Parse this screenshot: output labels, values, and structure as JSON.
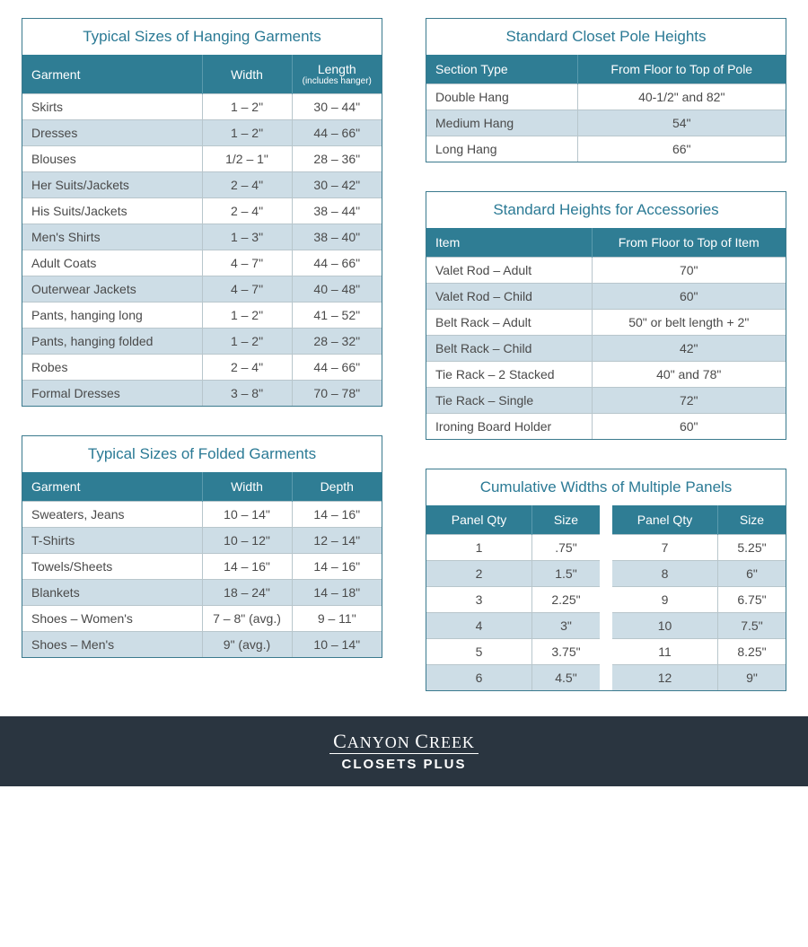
{
  "colors": {
    "header_bg": "#2f7d94",
    "title_text": "#2b7a95",
    "border": "#3b7a8e",
    "row_alt": "#cddde6",
    "footer_bg": "#2a3540"
  },
  "hanging": {
    "title": "Typical Sizes of Hanging Garments",
    "cols": {
      "c1": "Garment",
      "c2": "Width",
      "c3": "Length",
      "c3sub": "(includes hanger)"
    },
    "rows": [
      {
        "g": "Skirts",
        "w": "1 – 2\"",
        "l": "30 – 44\""
      },
      {
        "g": "Dresses",
        "w": "1 – 2\"",
        "l": "44 – 66\""
      },
      {
        "g": "Blouses",
        "w": "1/2 – 1\"",
        "l": "28 – 36\""
      },
      {
        "g": "Her Suits/Jackets",
        "w": "2 – 4\"",
        "l": "30 – 42\""
      },
      {
        "g": "His Suits/Jackets",
        "w": "2 – 4\"",
        "l": "38 – 44\""
      },
      {
        "g": "Men's Shirts",
        "w": "1 – 3\"",
        "l": "38 – 40\""
      },
      {
        "g": "Adult Coats",
        "w": "4 – 7\"",
        "l": "44 – 66\""
      },
      {
        "g": "Outerwear Jackets",
        "w": "4 – 7\"",
        "l": "40 – 48\""
      },
      {
        "g": "Pants, hanging long",
        "w": "1 – 2\"",
        "l": "41 – 52\""
      },
      {
        "g": "Pants, hanging folded",
        "w": "1 – 2\"",
        "l": "28 – 32\""
      },
      {
        "g": "Robes",
        "w": "2 – 4\"",
        "l": "44 – 66\""
      },
      {
        "g": "Formal Dresses",
        "w": "3 – 8\"",
        "l": "70 – 78\""
      }
    ]
  },
  "folded": {
    "title": "Typical Sizes of Folded Garments",
    "cols": {
      "c1": "Garment",
      "c2": "Width",
      "c3": "Depth"
    },
    "rows": [
      {
        "g": "Sweaters, Jeans",
        "w": "10 – 14\"",
        "d": "14 – 16\""
      },
      {
        "g": "T-Shirts",
        "w": "10 – 12\"",
        "d": "12 – 14\""
      },
      {
        "g": "Towels/Sheets",
        "w": "14 – 16\"",
        "d": "14 – 16\""
      },
      {
        "g": "Blankets",
        "w": "18 – 24\"",
        "d": "14 – 18\""
      },
      {
        "g": "Shoes – Women's",
        "w": "7 – 8\" (avg.)",
        "d": "9 – 11\""
      },
      {
        "g": "Shoes – Men's",
        "w": "9\" (avg.)",
        "d": "10 – 14\""
      }
    ]
  },
  "pole": {
    "title": "Standard Closet Pole Heights",
    "cols": {
      "c1": "Section Type",
      "c2": "From Floor to Top of Pole"
    },
    "rows": [
      {
        "t": "Double Hang",
        "h": "40-1/2\" and 82\""
      },
      {
        "t": "Medium Hang",
        "h": "54\""
      },
      {
        "t": "Long Hang",
        "h": "66\""
      }
    ]
  },
  "acc": {
    "title": "Standard Heights for Accessories",
    "cols": {
      "c1": "Item",
      "c2": "From Floor to Top of Item"
    },
    "rows": [
      {
        "i": "Valet Rod – Adult",
        "h": "70\""
      },
      {
        "i": "Valet Rod – Child",
        "h": "60\""
      },
      {
        "i": "Belt Rack – Adult",
        "h": "50\" or belt length + 2\""
      },
      {
        "i": "Belt Rack – Child",
        "h": "42\""
      },
      {
        "i": "Tie Rack – 2 Stacked",
        "h": "40\" and 78\""
      },
      {
        "i": "Tie Rack – Single",
        "h": "72\""
      },
      {
        "i": "Ironing Board Holder",
        "h": "60\""
      }
    ]
  },
  "panels": {
    "title": "Cumulative Widths of Multiple Panels",
    "cols": {
      "c1": "Panel Qty",
      "c2": "Size"
    },
    "left": [
      {
        "q": "1",
        "s": ".75\""
      },
      {
        "q": "2",
        "s": "1.5\""
      },
      {
        "q": "3",
        "s": "2.25\""
      },
      {
        "q": "4",
        "s": "3\""
      },
      {
        "q": "5",
        "s": "3.75\""
      },
      {
        "q": "6",
        "s": "4.5\""
      }
    ],
    "right": [
      {
        "q": "7",
        "s": "5.25\""
      },
      {
        "q": "8",
        "s": "6\""
      },
      {
        "q": "9",
        "s": "6.75\""
      },
      {
        "q": "10",
        "s": "7.5\""
      },
      {
        "q": "11",
        "s": "8.25\""
      },
      {
        "q": "12",
        "s": "9\""
      }
    ]
  },
  "footer": {
    "top1": "C",
    "top2": "ANYON ",
    "top3": "C",
    "top4": "REEK",
    "bottom": "CLOSETS PLUS"
  }
}
